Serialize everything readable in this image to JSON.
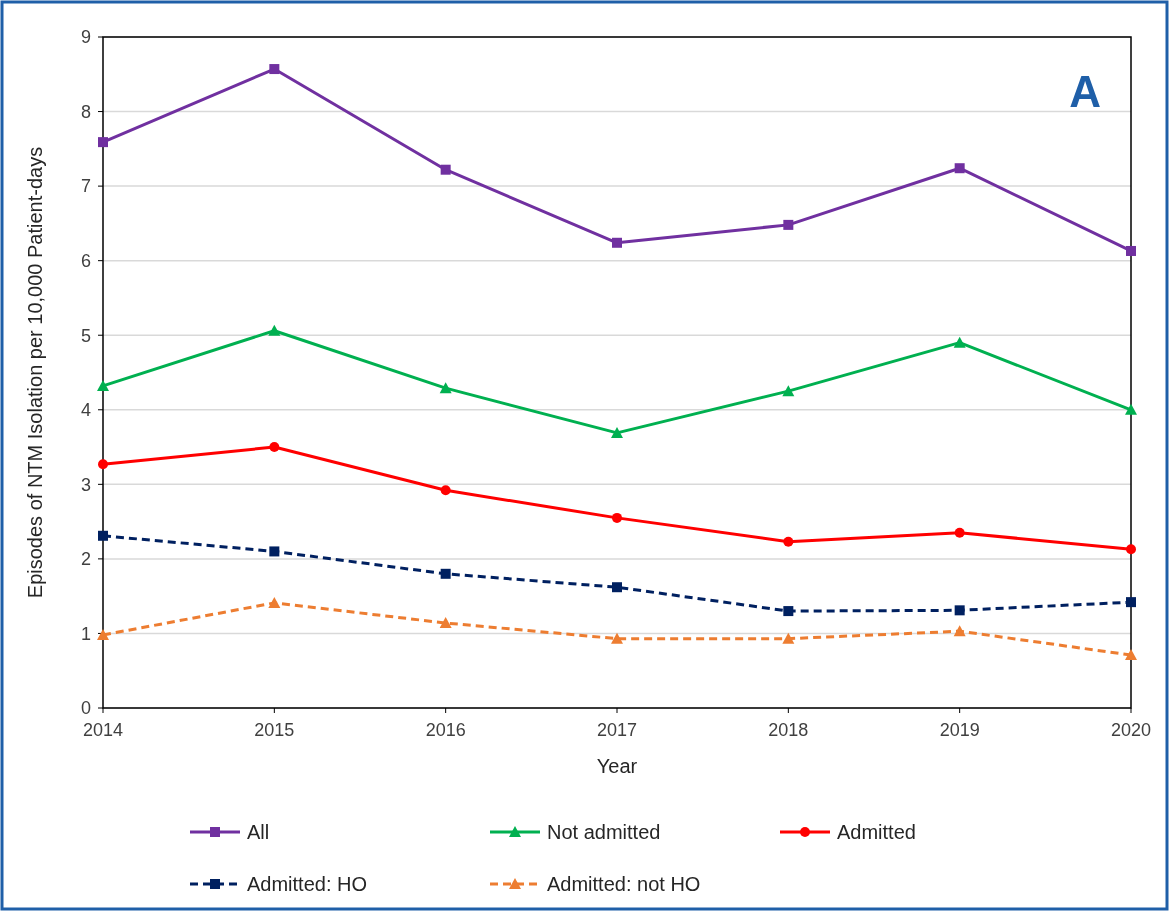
{
  "chart_data": {
    "type": "line",
    "xlabel": "Year",
    "ylabel": "Episodes of NTM Isolation per 10,000 Patient-days",
    "annotations": [
      "A"
    ],
    "x": [
      2014,
      2015,
      2016,
      2017,
      2018,
      2019,
      2020
    ],
    "xlim": [
      2014,
      2020
    ],
    "xticks": [
      2014,
      2015,
      2016,
      2017,
      2018,
      2019,
      2020
    ],
    "ylim": [
      0,
      9
    ],
    "yticks": [
      0,
      1,
      2,
      3,
      4,
      5,
      6,
      7,
      8,
      9
    ],
    "grid": "y",
    "legend": "bottom",
    "series": [
      {
        "name": "All",
        "color": "#7030a0",
        "marker": "square",
        "line_style": "solid",
        "values": [
          7.59,
          8.57,
          7.22,
          6.24,
          6.48,
          7.24,
          6.13
        ]
      },
      {
        "name": "Not admitted",
        "color": "#00b050",
        "marker": "triangle",
        "line_style": "solid",
        "values": [
          4.32,
          5.06,
          4.29,
          3.69,
          4.25,
          4.9,
          4.0
        ]
      },
      {
        "name": "Admitted",
        "color": "#ff0000",
        "marker": "circle",
        "line_style": "solid",
        "values": [
          3.27,
          3.5,
          2.92,
          2.55,
          2.23,
          2.35,
          2.13
        ]
      },
      {
        "name": "Admitted: HO",
        "color": "#002060",
        "marker": "square",
        "line_style": "dashed",
        "values": [
          2.31,
          2.1,
          1.8,
          1.62,
          1.3,
          1.31,
          1.42
        ]
      },
      {
        "name": "Admitted: not HO",
        "color": "#ed7d31",
        "marker": "triangle",
        "line_style": "dashed",
        "values": [
          0.98,
          1.41,
          1.14,
          0.93,
          0.93,
          1.03,
          0.71
        ]
      }
    ]
  }
}
